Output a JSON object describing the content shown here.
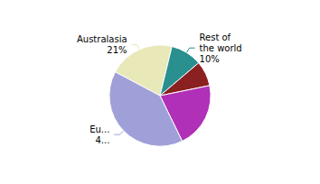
{
  "chart_data": {
    "type": "pie",
    "categories": [
      "Australasia\n21%",
      "Rest of\nthe world\n10%",
      null,
      null,
      "Eu...\n4..."
    ],
    "values": [
      21,
      10,
      8,
      21,
      40
    ],
    "colors": [
      "#e8e8b8",
      "#2a8f8f",
      "#8b2020",
      "#b030b8",
      "#a0a0d8"
    ]
  }
}
